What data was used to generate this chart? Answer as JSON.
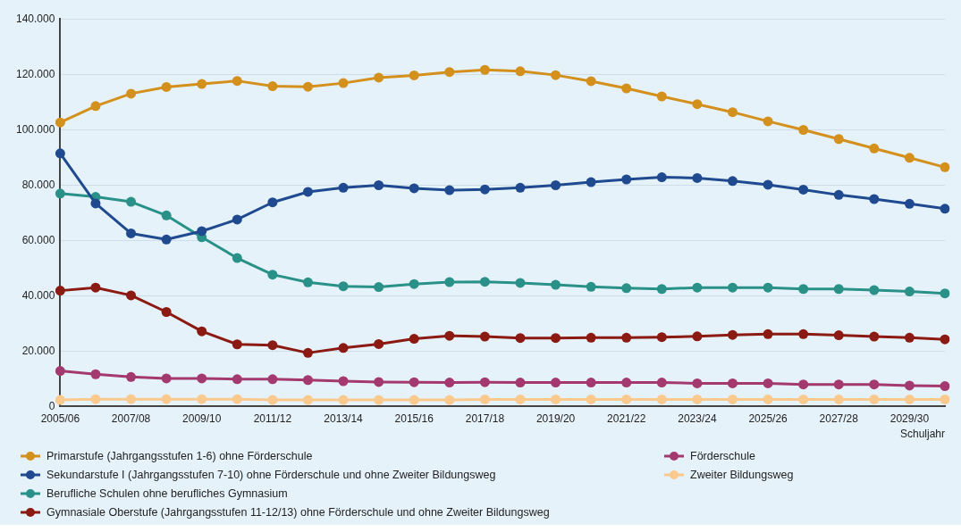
{
  "chart_data": {
    "type": "line",
    "xlabel": "Schuljahr",
    "categories": [
      "2005/06",
      null,
      "2007/08",
      null,
      "2009/10",
      null,
      "2011/12",
      null,
      "2013/14",
      null,
      "2015/16",
      null,
      "2017/18",
      null,
      "2019/20",
      null,
      "2021/22",
      null,
      "2023/24",
      null,
      "2025/26",
      null,
      "2027/28",
      null,
      "2029/30",
      null
    ],
    "series": [
      {
        "name": "Primarstufe (Jahrgangsstufen 1-6) ohne Förderschule",
        "color": "#d4901c",
        "values": [
          102600,
          108500,
          113000,
          115400,
          116500,
          117600,
          115700,
          115500,
          116800,
          118800,
          119600,
          120800,
          121600,
          121100,
          119700,
          117500,
          114900,
          112000,
          109200,
          106300,
          103000,
          99900,
          96600,
          93200,
          89800,
          86400
        ]
      },
      {
        "name": "Sekundarstufe I (Jahrgangsstufen 7-10) ohne Förderschule und ohne Zweiter Bildungsweg",
        "color": "#1f4a8f",
        "values": [
          91400,
          73300,
          62500,
          60300,
          63300,
          67500,
          73700,
          77500,
          79000,
          79900,
          78800,
          78100,
          78400,
          79000,
          79900,
          81000,
          82000,
          82800,
          82500,
          81400,
          80100,
          78300,
          76400,
          74900,
          73200,
          71400
        ]
      },
      {
        "name": "Berufliche Schulen ohne berufliches Gymnasium",
        "color": "#2a9188",
        "values": [
          76900,
          75700,
          73900,
          69000,
          61100,
          53600,
          47600,
          44800,
          43400,
          43100,
          44200,
          44900,
          45000,
          44600,
          43900,
          43200,
          42700,
          42400,
          42900,
          42900,
          42900,
          42400,
          42400,
          42000,
          41500,
          40800
        ]
      },
      {
        "name": "Gymnasiale Oberstufe (Jahrgangsstufen 11-12/13) ohne Förderschule und ohne Zweiter Bildungsweg",
        "color": "#8b1a12",
        "values": [
          41800,
          42900,
          40100,
          34100,
          27100,
          22400,
          22100,
          19300,
          21100,
          22500,
          24400,
          25500,
          25200,
          24700,
          24700,
          24800,
          24800,
          25000,
          25300,
          25800,
          26100,
          26100,
          25700,
          25200,
          24800,
          24200
        ]
      },
      {
        "name": "Förderschule",
        "color": "#a3396f",
        "values": [
          12800,
          11600,
          10600,
          10100,
          10100,
          9800,
          9800,
          9500,
          9100,
          8800,
          8700,
          8600,
          8700,
          8600,
          8600,
          8600,
          8600,
          8600,
          8300,
          8300,
          8300,
          7900,
          7900,
          7900,
          7500,
          7300
        ]
      },
      {
        "name": "Zweiter Bildungsweg",
        "color": "#f9c98e",
        "values": [
          2300,
          2600,
          2600,
          2600,
          2600,
          2600,
          2300,
          2300,
          2300,
          2300,
          2300,
          2300,
          2500,
          2500,
          2500,
          2500,
          2500,
          2500,
          2500,
          2500,
          2500,
          2500,
          2500,
          2500,
          2500,
          2500
        ]
      }
    ],
    "ylim": [
      0,
      140000
    ],
    "yticks": [
      0,
      {
        "value": 20000,
        "label": "20.000"
      },
      {
        "value": 40000,
        "label": "40.000"
      },
      {
        "value": 60000,
        "label": "60.000"
      },
      {
        "value": 80000,
        "label": "80.000"
      },
      {
        "value": 100000,
        "label": "100.000"
      },
      {
        "value": 120000,
        "label": "120.000"
      },
      {
        "value": 140000,
        "label": "140.000"
      }
    ],
    "grid": "y",
    "legend": "bottom",
    "marker": "circle",
    "line_style": "solid"
  }
}
